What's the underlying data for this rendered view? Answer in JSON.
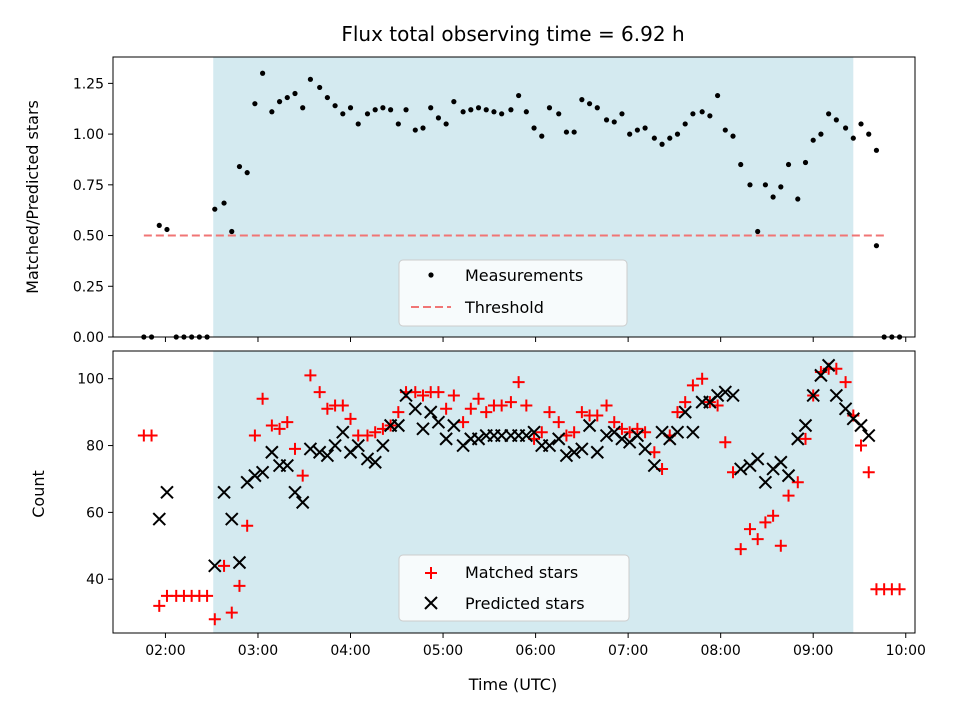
{
  "chart_data": {
    "title": "Flux total observing time = 6.92 h",
    "xlabel": "Time (UTC)",
    "x_ticks": [
      "02:00",
      "03:00",
      "04:00",
      "05:00",
      "06:00",
      "07:00",
      "08:00",
      "09:00",
      "10:00"
    ],
    "xlim": [
      "01:26",
      "10:06"
    ],
    "shaded_interval": [
      "02:31",
      "09:26"
    ],
    "shade_color": "#d4eaf0",
    "panels": [
      {
        "type": "scatter",
        "ylabel": "Matched/Predicted stars",
        "ylim": [
          0,
          1.38
        ],
        "y_ticks": [
          "0.00",
          "0.25",
          "0.50",
          "0.75",
          "1.00",
          "1.25"
        ],
        "legend": {
          "placement": "lower-center",
          "entries": [
            "Measurements",
            "Threshold"
          ]
        },
        "series": [
          {
            "name": "Measurements",
            "marker": "dot",
            "color": "#000000",
            "x": [
              "01:46",
              "01:51",
              "01:56",
              "02:01",
              "02:07",
              "02:12",
              "02:17",
              "02:22",
              "02:27",
              "02:32",
              "02:38",
              "02:43",
              "02:48",
              "02:53",
              "02:58",
              "03:03",
              "03:09",
              "03:14",
              "03:19",
              "03:24",
              "03:29",
              "03:34",
              "03:40",
              "03:45",
              "03:50",
              "03:55",
              "04:00",
              "04:05",
              "04:11",
              "04:16",
              "04:21",
              "04:26",
              "04:31",
              "04:36",
              "04:42",
              "04:47",
              "04:52",
              "04:57",
              "05:02",
              "05:07",
              "05:13",
              "05:18",
              "05:23",
              "05:28",
              "05:33",
              "05:38",
              "05:44",
              "05:49",
              "05:54",
              "05:59",
              "06:04",
              "06:09",
              "06:15",
              "06:20",
              "06:25",
              "06:30",
              "06:35",
              "06:40",
              "06:46",
              "06:51",
              "06:56",
              "07:01",
              "07:06",
              "07:11",
              "07:17",
              "07:22",
              "07:27",
              "07:32",
              "07:37",
              "07:42",
              "07:48",
              "07:53",
              "07:58",
              "08:03",
              "08:08",
              "08:13",
              "08:19",
              "08:24",
              "08:29",
              "08:34",
              "08:39",
              "08:44",
              "08:50",
              "08:55",
              "09:00",
              "09:05",
              "09:10",
              "09:15",
              "09:21",
              "09:26",
              "09:31",
              "09:36",
              "09:41"
            ],
            "y": [
              0.0,
              0.0,
              0.55,
              0.53,
              0.0,
              0.0,
              0.0,
              0.0,
              0.0,
              0.63,
              0.66,
              0.52,
              0.84,
              0.81,
              1.15,
              1.3,
              1.11,
              1.16,
              1.18,
              1.2,
              1.13,
              1.27,
              1.23,
              1.18,
              1.14,
              1.1,
              1.13,
              1.05,
              1.1,
              1.12,
              1.13,
              1.12,
              1.05,
              1.12,
              1.02,
              1.03,
              1.13,
              1.08,
              1.05,
              1.16,
              1.11,
              1.12,
              1.13,
              1.12,
              1.11,
              1.1,
              1.12,
              1.19,
              1.11,
              1.03,
              0.99,
              1.13,
              1.1,
              1.01,
              1.01,
              1.17,
              1.15,
              1.13,
              1.07,
              1.06,
              1.1,
              1.0,
              1.02,
              1.03,
              0.98,
              0.95,
              0.98,
              1.0,
              1.05,
              1.1,
              1.11,
              1.09,
              1.19,
              1.02,
              0.99,
              0.85,
              0.75,
              0.52,
              0.75,
              0.69,
              0.74,
              0.85,
              0.68,
              0.86,
              0.97,
              1.0,
              1.1,
              1.07,
              1.03,
              0.98,
              1.05,
              1.0,
              0.92
            ]
          },
          {
            "name": "Threshold",
            "marker": "dashed-line",
            "color": "#f07575",
            "x": [
              "01:46",
              "09:46"
            ],
            "y": [
              0.5,
              0.5
            ]
          }
        ]
      },
      {
        "type": "scatter",
        "ylabel": "Count",
        "ylim": [
          23.9,
          108.3
        ],
        "y_ticks": [
          "40",
          "60",
          "80",
          "100"
        ],
        "legend": {
          "placement": "lower-center",
          "entries": [
            "Matched stars",
            "Predicted stars"
          ]
        },
        "series": [
          {
            "name": "Matched stars",
            "marker": "plus",
            "color": "#ff0000",
            "x": [
              "01:46",
              "01:51",
              "01:56",
              "02:01",
              "02:07",
              "02:12",
              "02:17",
              "02:22",
              "02:27",
              "02:32",
              "02:38",
              "02:43",
              "02:48",
              "02:53",
              "02:58",
              "03:03",
              "03:09",
              "03:14",
              "03:19",
              "03:24",
              "03:29",
              "03:34",
              "03:40",
              "03:45",
              "03:50",
              "03:55",
              "04:00",
              "04:05",
              "04:11",
              "04:16",
              "04:21",
              "04:26",
              "04:31",
              "04:36",
              "04:42",
              "04:47",
              "04:52",
              "04:57",
              "05:02",
              "05:07",
              "05:13",
              "05:18",
              "05:23",
              "05:28",
              "05:33",
              "05:38",
              "05:44",
              "05:49",
              "05:54",
              "05:59",
              "06:04",
              "06:09",
              "06:15",
              "06:20",
              "06:25",
              "06:30",
              "06:35",
              "06:40",
              "06:46",
              "06:51",
              "06:56",
              "07:01",
              "07:06",
              "07:11",
              "07:17",
              "07:22",
              "07:27",
              "07:32",
              "07:37",
              "07:42",
              "07:48",
              "07:53",
              "07:58",
              "08:03",
              "08:08",
              "08:13",
              "08:19",
              "08:24",
              "08:29",
              "08:34",
              "08:39",
              "08:44",
              "08:50",
              "08:55",
              "09:00",
              "09:05",
              "09:10",
              "09:15",
              "09:21",
              "09:26",
              "09:31",
              "09:36",
              "09:41"
            ],
            "y": [
              83,
              83,
              32,
              35,
              35,
              35,
              35,
              35,
              35,
              28,
              44,
              30,
              38,
              56,
              83,
              94,
              86,
              85,
              87,
              79,
              71,
              101,
              96,
              91,
              92,
              92,
              88,
              83,
              83,
              84,
              85,
              86,
              90,
              96,
              96,
              95,
              96,
              96,
              91,
              95,
              87,
              91,
              94,
              90,
              92,
              92,
              93,
              99,
              92,
              82,
              84,
              90,
              87,
              83,
              84,
              90,
              89,
              89,
              92,
              87,
              85,
              84,
              85,
              84,
              78,
              73,
              83,
              90,
              93,
              98,
              100,
              93,
              92,
              81,
              72,
              49,
              55,
              52,
              57,
              59,
              50,
              65,
              69,
              82,
              95,
              102,
              103,
              103,
              99,
              89,
              80,
              72,
              37
            ]
          },
          {
            "name": "Predicted stars",
            "marker": "x",
            "color": "#000000",
            "x": [
              "01:56",
              "02:01",
              "02:32",
              "02:38",
              "02:43",
              "02:48",
              "02:53",
              "02:58",
              "03:03",
              "03:09",
              "03:14",
              "03:19",
              "03:24",
              "03:29",
              "03:34",
              "03:40",
              "03:45",
              "03:50",
              "03:55",
              "04:00",
              "04:05",
              "04:11",
              "04:16",
              "04:21",
              "04:26",
              "04:31",
              "04:36",
              "04:42",
              "04:47",
              "04:52",
              "04:57",
              "05:02",
              "05:07",
              "05:13",
              "05:18",
              "05:23",
              "05:28",
              "05:33",
              "05:38",
              "05:44",
              "05:49",
              "05:54",
              "05:59",
              "06:04",
              "06:09",
              "06:15",
              "06:20",
              "06:25",
              "06:30",
              "06:35",
              "06:40",
              "06:46",
              "06:51",
              "06:56",
              "07:01",
              "07:06",
              "07:11",
              "07:17",
              "07:22",
              "07:27",
              "07:32",
              "07:37",
              "07:42",
              "07:48",
              "07:53",
              "07:58",
              "08:03",
              "08:08",
              "08:13",
              "08:19",
              "08:24",
              "08:29",
              "08:34",
              "08:39",
              "08:44",
              "08:50",
              "08:55",
              "09:00",
              "09:05",
              "09:10",
              "09:15",
              "09:21",
              "09:26",
              "09:31",
              "09:36"
            ],
            "y": [
              58,
              66,
              44,
              66,
              58,
              45,
              69,
              71,
              72,
              78,
              74,
              74,
              66,
              63,
              79,
              78,
              77,
              80,
              84,
              78,
              80,
              76,
              75,
              80,
              86,
              86,
              95,
              91,
              85,
              90,
              87,
              82,
              86,
              80,
              82,
              82,
              83,
              83,
              83,
              83,
              83,
              83,
              84,
              80,
              80,
              82,
              77,
              78,
              79,
              86,
              78,
              83,
              84,
              82,
              81,
              83,
              79,
              74,
              84,
              82,
              84,
              90,
              84,
              93,
              93,
              95,
              96,
              95,
              73,
              74,
              76,
              69,
              73,
              75,
              71,
              82,
              86,
              95,
              101,
              104,
              95,
              91,
              88,
              86,
              83
            ]
          }
        ]
      }
    ],
    "extra_dots_panel1": {
      "x": [
        "09:41",
        "09:46",
        "09:51",
        "09:56"
      ],
      "y": [
        0.45,
        0.0,
        0.0,
        0.0
      ]
    },
    "extra_plus_panel2": {
      "x": [
        "09:46",
        "09:51",
        "09:56"
      ],
      "y": [
        37,
        37,
        37
      ]
    }
  }
}
